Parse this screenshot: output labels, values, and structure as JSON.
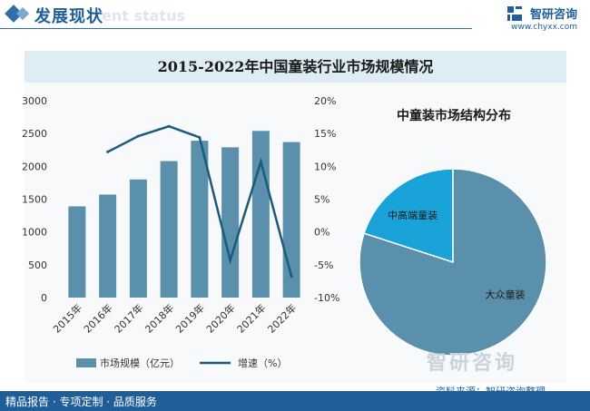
{
  "header": {
    "title": "发展现状",
    "watermark": "ent status",
    "logo_name": "智研咨询",
    "logo_url": "www.chyxx.com"
  },
  "chart_data": [
    {
      "type": "bar",
      "title": "2015-2022年中国童装行业市场规模情况",
      "categories": [
        "2015年",
        "2016年",
        "2017年",
        "2018年",
        "2019年",
        "2020年",
        "2021年",
        "2022年"
      ],
      "series": [
        {
          "name": "市场规模（亿元）",
          "type": "bar",
          "axis": "left",
          "color": "#5b90ad",
          "values": [
            1390,
            1570,
            1800,
            2080,
            2390,
            2290,
            2540,
            2370
          ]
        },
        {
          "name": "增速（%）",
          "type": "line",
          "axis": "right",
          "color": "#1c5a7d",
          "values": [
            null,
            12.2,
            14.6,
            16.1,
            14.4,
            -4.3,
            10.7,
            -6.8
          ]
        }
      ],
      "y_left": {
        "min": 0,
        "max": 3000,
        "ticks": [
          "0",
          "500",
          "1000",
          "1500",
          "2000",
          "2500",
          "3000"
        ]
      },
      "y_right": {
        "min": -10,
        "max": 20,
        "ticks": [
          "-10%",
          "-5%",
          "0%",
          "5%",
          "10%",
          "15%",
          "20%"
        ]
      },
      "legend_position": "bottom",
      "grid": false
    },
    {
      "type": "pie",
      "title": "中童装市场结构分布",
      "slices": [
        {
          "label": "中高端童装",
          "value": 20,
          "color": "#1aa3d8"
        },
        {
          "label": "大众童装",
          "value": 80,
          "color": "#5b90ad"
        }
      ]
    }
  ],
  "watermark_mid": "智研咨询",
  "source": "资料来源：智研咨询整理",
  "footer": {
    "text": "精品报告 · 专项定制 · 品质服务"
  }
}
